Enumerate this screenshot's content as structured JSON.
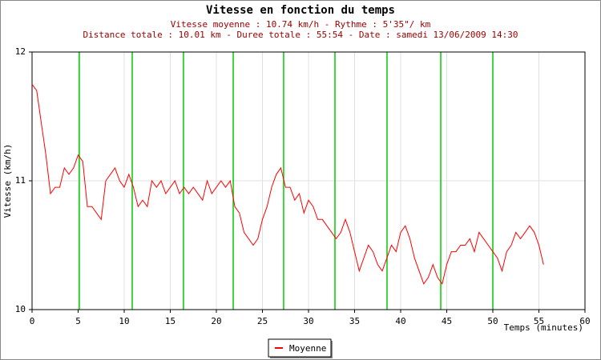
{
  "chart_data": {
    "type": "line",
    "title": "Vitesse en fonction du temps",
    "subtitle": [
      "Vitesse moyenne : 10.74 km/h - Rythme : 5'35\"/ km",
      "Distance totale : 10.01 km - Duree totale : 55:54 - Date : samedi 13/06/2009 14:30"
    ],
    "x_label": "Temps (minutes)",
    "y_label": "Vitesse (km/h)",
    "xlim": [
      0,
      60
    ],
    "ylim": [
      10,
      12
    ],
    "xticks": [
      0,
      5,
      10,
      15,
      20,
      25,
      30,
      35,
      40,
      45,
      50,
      55,
      60
    ],
    "yticks": [
      10,
      11,
      12
    ],
    "grid": true,
    "km_marks": {
      "color": "#00cc00",
      "values": [
        5.13,
        10.87,
        16.43,
        21.83,
        27.3,
        32.87,
        38.52,
        44.35,
        50.0
      ]
    },
    "x": [
      0,
      0.5,
      1,
      1.5,
      2,
      2.5,
      3,
      3.5,
      4,
      4.5,
      5,
      5.5,
      6,
      6.5,
      7,
      7.5,
      8,
      8.5,
      9,
      9.5,
      10,
      10.5,
      11,
      11.5,
      12,
      12.5,
      13,
      13.5,
      14,
      14.5,
      15,
      15.5,
      16,
      16.5,
      17,
      17.5,
      18,
      18.5,
      19,
      19.5,
      20,
      20.5,
      21,
      21.5,
      22,
      22.5,
      23,
      23.5,
      24,
      24.5,
      25,
      25.5,
      26,
      26.5,
      27,
      27.5,
      28,
      28.5,
      29,
      29.5,
      30,
      30.5,
      31,
      31.5,
      32,
      32.5,
      33,
      33.5,
      34,
      34.5,
      35,
      35.5,
      36,
      36.5,
      37,
      37.5,
      38,
      38.5,
      39,
      39.5,
      40,
      40.5,
      41,
      41.5,
      42,
      42.5,
      43,
      43.5,
      44,
      44.5,
      45,
      45.5,
      46,
      46.5,
      47,
      47.5,
      48,
      48.5,
      49,
      49.5,
      50,
      50.5,
      51,
      51.5,
      52,
      52.5,
      53,
      53.5,
      54,
      54.5,
      55,
      55.5
    ],
    "series": [
      {
        "name": "Moyenne",
        "color": "#ff0000",
        "values": [
          11.75,
          11.7,
          11.45,
          11.2,
          10.9,
          10.95,
          10.95,
          11.1,
          11.05,
          11.1,
          11.2,
          11.15,
          10.8,
          10.8,
          10.75,
          10.7,
          11.0,
          11.05,
          11.1,
          11.0,
          10.95,
          11.05,
          10.95,
          10.8,
          10.85,
          10.8,
          11.0,
          10.95,
          11.0,
          10.9,
          10.95,
          11.0,
          10.9,
          10.95,
          10.9,
          10.95,
          10.9,
          10.85,
          11.0,
          10.9,
          10.95,
          11.0,
          10.95,
          11.0,
          10.8,
          10.75,
          10.6,
          10.55,
          10.5,
          10.55,
          10.7,
          10.8,
          10.95,
          11.05,
          11.1,
          10.95,
          10.95,
          10.85,
          10.9,
          10.75,
          10.85,
          10.8,
          10.7,
          10.7,
          10.65,
          10.6,
          10.55,
          10.6,
          10.7,
          10.6,
          10.45,
          10.3,
          10.4,
          10.5,
          10.45,
          10.35,
          10.3,
          10.4,
          10.5,
          10.45,
          10.6,
          10.65,
          10.55,
          10.4,
          10.3,
          10.2,
          10.25,
          10.35,
          10.25,
          10.2,
          10.35,
          10.45,
          10.45,
          10.5,
          10.5,
          10.55,
          10.45,
          10.6,
          10.55,
          10.5,
          10.45,
          10.4,
          10.3,
          10.45,
          10.5,
          10.6,
          10.55,
          10.6,
          10.65,
          10.6,
          10.5,
          10.35
        ]
      }
    ]
  }
}
